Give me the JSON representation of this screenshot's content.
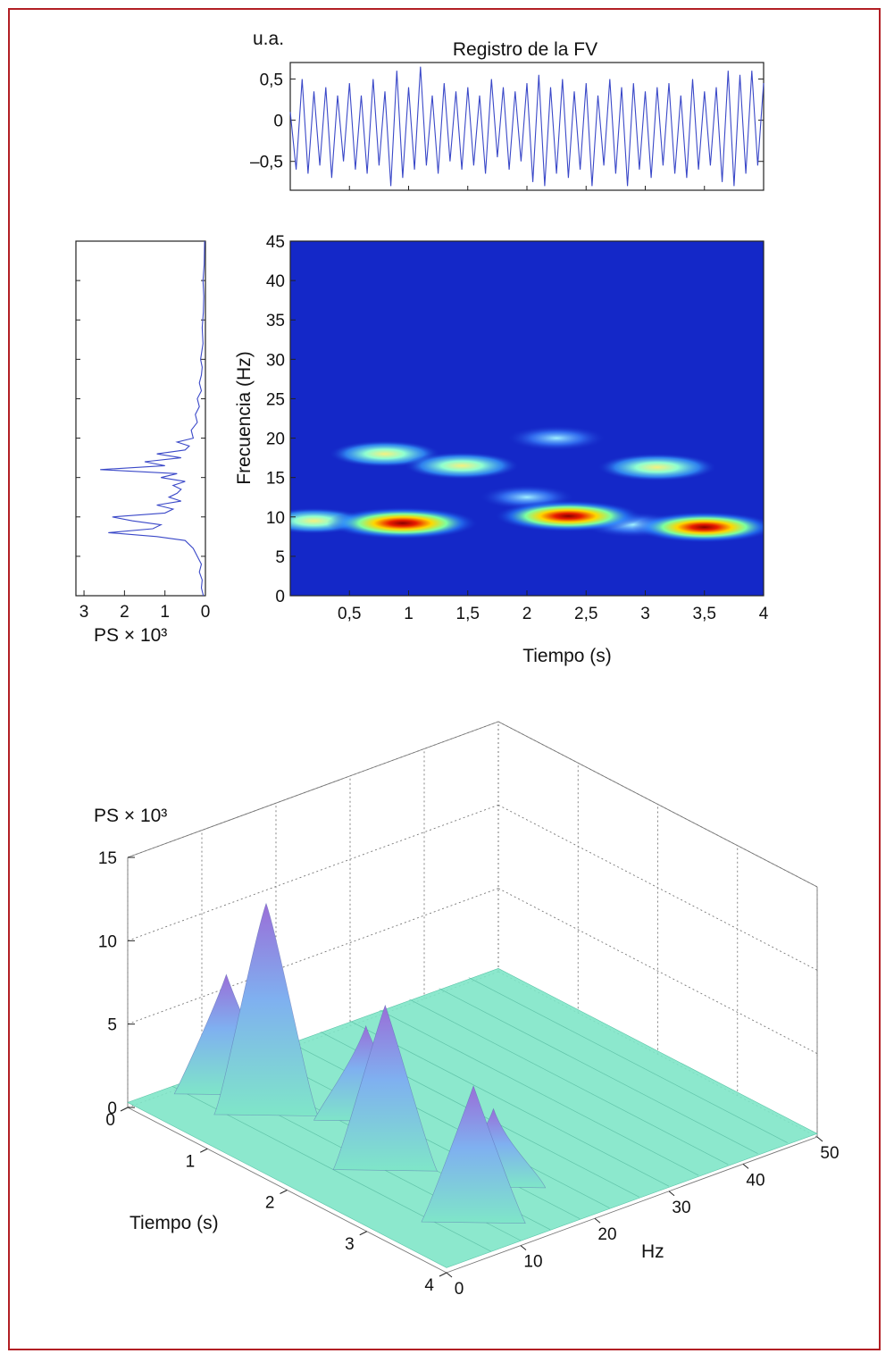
{
  "chart_data": [
    {
      "type": "line",
      "title": "Registro de la FV",
      "ylabel": "u.a.",
      "ylim": [
        -0.85,
        0.7
      ],
      "xlim": [
        0,
        4
      ],
      "y_ticks": [
        "0,5",
        "0",
        "–0,5"
      ],
      "y_tick_values": [
        0.5,
        0,
        -0.5
      ],
      "series": [
        {
          "color": "#3a48c8",
          "x": [
            0.0,
            0.05,
            0.1,
            0.15,
            0.2,
            0.25,
            0.3,
            0.35,
            0.4,
            0.45,
            0.5,
            0.55,
            0.6,
            0.65,
            0.7,
            0.75,
            0.8,
            0.85,
            0.9,
            0.95,
            1.0,
            1.05,
            1.1,
            1.15,
            1.2,
            1.25,
            1.3,
            1.35,
            1.4,
            1.45,
            1.5,
            1.55,
            1.6,
            1.65,
            1.7,
            1.75,
            1.8,
            1.85,
            1.9,
            1.95,
            2.0,
            2.05,
            2.1,
            2.15,
            2.2,
            2.25,
            2.3,
            2.35,
            2.4,
            2.45,
            2.5,
            2.55,
            2.6,
            2.65,
            2.7,
            2.75,
            2.8,
            2.85,
            2.9,
            2.95,
            3.0,
            3.05,
            3.1,
            3.15,
            3.2,
            3.25,
            3.3,
            3.35,
            3.4,
            3.45,
            3.5,
            3.55,
            3.6,
            3.65,
            3.7,
            3.75,
            3.8,
            3.85,
            3.9,
            3.95,
            4.0
          ],
          "y": [
            0.1,
            -0.6,
            0.5,
            -0.65,
            0.35,
            -0.55,
            0.4,
            -0.7,
            0.3,
            -0.5,
            0.45,
            -0.6,
            0.3,
            -0.65,
            0.5,
            -0.55,
            0.35,
            -0.8,
            0.6,
            -0.7,
            0.4,
            -0.6,
            0.65,
            -0.55,
            0.3,
            -0.65,
            0.45,
            -0.5,
            0.35,
            -0.6,
            0.4,
            -0.55,
            0.3,
            -0.65,
            0.5,
            -0.45,
            0.4,
            -0.6,
            0.35,
            -0.5,
            0.45,
            -0.75,
            0.55,
            -0.8,
            0.4,
            -0.65,
            0.5,
            -0.7,
            0.35,
            -0.6,
            0.45,
            -0.8,
            0.3,
            -0.55,
            0.5,
            -0.65,
            0.4,
            -0.8,
            0.45,
            -0.6,
            0.35,
            -0.7,
            0.4,
            -0.55,
            0.45,
            -0.65,
            0.3,
            -0.7,
            0.5,
            -0.6,
            0.35,
            -0.55,
            0.4,
            -0.75,
            0.6,
            -0.8,
            0.55,
            -0.65,
            0.6,
            -0.55,
            0.45
          ]
        }
      ]
    },
    {
      "type": "heatmap",
      "xlabel": "Tiempo (s)",
      "ylabel": "Frecuencia (Hz)",
      "xlim": [
        0,
        4
      ],
      "ylim": [
        0,
        45
      ],
      "x_ticks": [
        "0,5",
        "1",
        "1,5",
        "2",
        "2,5",
        "3",
        "3,5",
        "4"
      ],
      "x_tick_values": [
        0.5,
        1,
        1.5,
        2,
        2.5,
        3,
        3.5,
        4
      ],
      "y_ticks": [
        "0",
        "5",
        "10",
        "15",
        "20",
        "25",
        "30",
        "35",
        "40",
        "45"
      ],
      "y_tick_values": [
        0,
        5,
        10,
        15,
        20,
        25,
        30,
        35,
        40,
        45
      ],
      "background_color": "#1428c8",
      "blobs": [
        {
          "t": 0.95,
          "f": 9.2,
          "intensity": 1.0
        },
        {
          "t": 2.35,
          "f": 10.1,
          "intensity": 0.95
        },
        {
          "t": 3.5,
          "f": 8.7,
          "intensity": 0.9
        },
        {
          "t": 0.8,
          "f": 18.0,
          "intensity": 0.5
        },
        {
          "t": 1.45,
          "f": 16.5,
          "intensity": 0.55
        },
        {
          "t": 3.1,
          "f": 16.3,
          "intensity": 0.6
        },
        {
          "t": 2.25,
          "f": 20.0,
          "intensity": 0.35
        },
        {
          "t": 2.0,
          "f": 12.5,
          "intensity": 0.3
        },
        {
          "t": 0.2,
          "f": 9.5,
          "intensity": 0.45
        },
        {
          "t": 2.9,
          "f": 9.0,
          "intensity": 0.4
        }
      ]
    },
    {
      "type": "line",
      "xlabel": "PS × 10³",
      "xlim": [
        0,
        3.2
      ],
      "x_ticks": [
        "3",
        "2",
        "1",
        "0"
      ],
      "x_tick_values": [
        3,
        2,
        1,
        0
      ],
      "ylim": [
        0,
        45
      ],
      "series": [
        {
          "color": "#3a48c8",
          "f": [
            0,
            1,
            2,
            3,
            4,
            5,
            6,
            7,
            7.5,
            8,
            8.5,
            9,
            9.5,
            10,
            10.5,
            11,
            11.5,
            12,
            12.5,
            13,
            13.5,
            14,
            14.5,
            15,
            15.5,
            16,
            16.5,
            17,
            17.5,
            18,
            18.5,
            19,
            19.5,
            20,
            21,
            22,
            23,
            24,
            25,
            26,
            27,
            28,
            29,
            30,
            32,
            34,
            36,
            38,
            40,
            42,
            45
          ],
          "ps": [
            0.05,
            0.1,
            0.08,
            0.15,
            0.1,
            0.2,
            0.3,
            0.5,
            1.2,
            2.4,
            1.3,
            1.1,
            1.8,
            2.3,
            1.0,
            0.8,
            1.2,
            0.6,
            0.9,
            0.7,
            0.6,
            0.8,
            0.5,
            1.1,
            0.7,
            2.6,
            1.0,
            1.5,
            0.6,
            1.2,
            0.5,
            0.4,
            0.7,
            0.3,
            0.35,
            0.2,
            0.25,
            0.15,
            0.2,
            0.1,
            0.15,
            0.1,
            0.08,
            0.12,
            0.06,
            0.08,
            0.05,
            0.04,
            0.06,
            0.03,
            0.02
          ]
        }
      ]
    },
    {
      "type": "surface",
      "zlabel": "PS × 10³",
      "xlabel": "Tiempo (s)",
      "ylabel": "Hz",
      "zlim": [
        0,
        15
      ],
      "z_ticks": [
        "0",
        "5",
        "10",
        "15"
      ],
      "z_tick_values": [
        0,
        5,
        10,
        15
      ],
      "x_ticks": [
        "0",
        "1",
        "2",
        "3",
        "4"
      ],
      "x_tick_values": [
        0,
        1,
        2,
        3,
        4
      ],
      "y_ticks": [
        "0",
        "10",
        "20",
        "30",
        "40",
        "50"
      ],
      "y_tick_values": [
        0,
        10,
        20,
        30,
        40,
        50
      ],
      "peaks": [
        {
          "t": 0.9,
          "f": 9,
          "ps": 13.0
        },
        {
          "t": 2.3,
          "f": 10,
          "ps": 10.2
        },
        {
          "t": 3.5,
          "f": 9,
          "ps": 8.5
        },
        {
          "t": 0.4,
          "f": 9,
          "ps": 7.5
        },
        {
          "t": 1.5,
          "f": 16,
          "ps": 6.0
        },
        {
          "t": 3.1,
          "f": 16,
          "ps": 5.0
        }
      ],
      "colors": {
        "low": "#7fe6c8",
        "mid": "#7fb0f0",
        "high": "#9a6ed8"
      }
    }
  ]
}
